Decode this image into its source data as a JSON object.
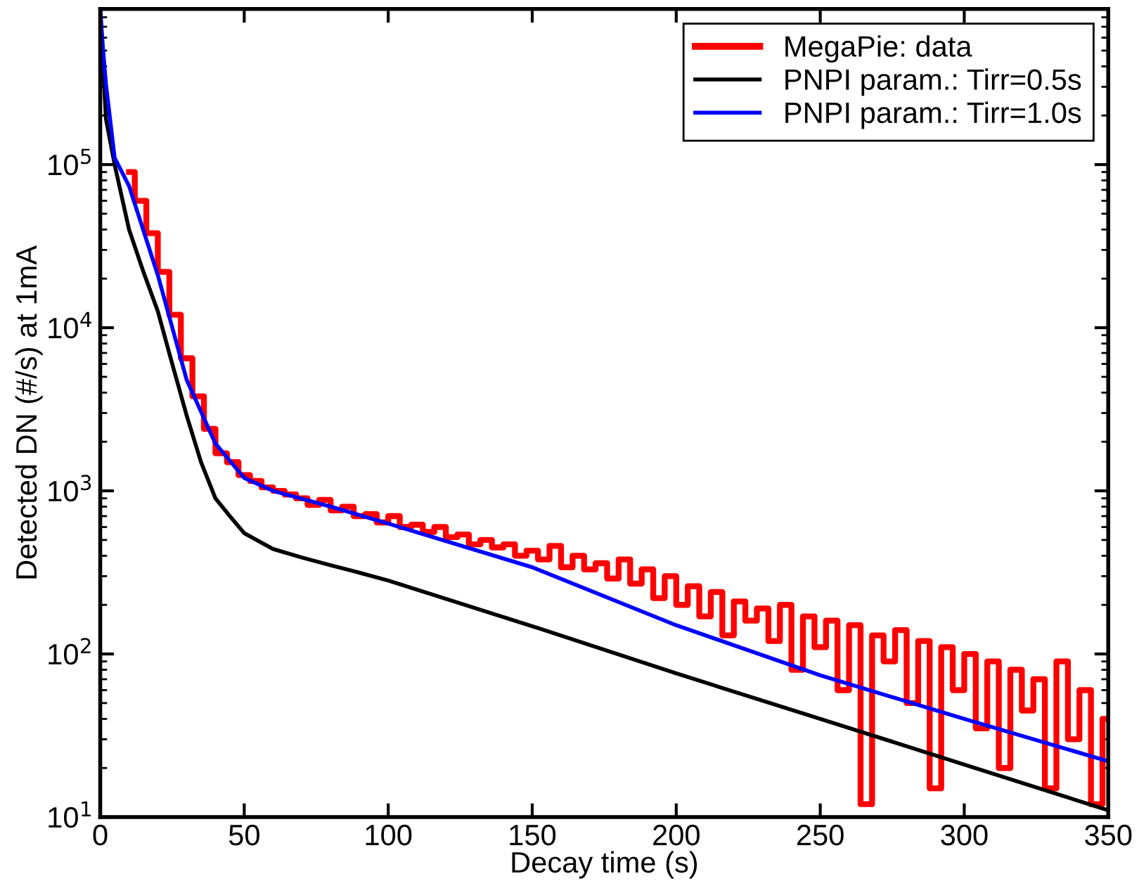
{
  "chart_data": {
    "type": "line",
    "xlabel": "Decay time (s)",
    "ylabel": "Detected DN (#/s) at 1mA",
    "log": "y",
    "grid": false,
    "legend": "top right",
    "marker": "none",
    "xlim": [
      0,
      350
    ],
    "xticks": [
      0,
      50,
      100,
      150,
      200,
      250,
      300,
      350
    ],
    "ylim": [
      10,
      900000
    ],
    "yticks": [
      {
        "value": 10,
        "label": "10$^{1}$"
      },
      {
        "value": 100,
        "label": "10$^{2}$"
      },
      {
        "value": 1000,
        "label": "10$^{3}$"
      },
      {
        "value": 10000,
        "label": "10$^{4}$"
      },
      {
        "value": 100000,
        "label": "10$^{5}$"
      }
    ],
    "series": [
      {
        "name": "MegaPie: data",
        "type": "step",
        "color": "#ff0000",
        "x": [
          10,
          14,
          18,
          22,
          26,
          30,
          34,
          38,
          42,
          46,
          50,
          54,
          58,
          62,
          66,
          70,
          74,
          78,
          82,
          86,
          90,
          94,
          98,
          102,
          106,
          110,
          114,
          118,
          122,
          126,
          130,
          134,
          138,
          142,
          146,
          150,
          154,
          158,
          162,
          166,
          170,
          174,
          178,
          182,
          186,
          190,
          194,
          198,
          202,
          206,
          210,
          214,
          218,
          222,
          226,
          230,
          234,
          238,
          242,
          246,
          250,
          254,
          258,
          262,
          266,
          270,
          274,
          278,
          282,
          286,
          290,
          294,
          298,
          302,
          306,
          310,
          314,
          318,
          322,
          326,
          330,
          334,
          338,
          342,
          346,
          350
        ],
        "values": [
          90000,
          60000,
          38000,
          22000,
          12000,
          6500,
          3800,
          2400,
          1700,
          1500,
          1250,
          1150,
          1050,
          1000,
          950,
          900,
          820,
          880,
          760,
          800,
          700,
          720,
          640,
          700,
          600,
          620,
          560,
          600,
          520,
          540,
          470,
          500,
          450,
          470,
          400,
          430,
          380,
          460,
          340,
          400,
          330,
          360,
          290,
          380,
          270,
          330,
          220,
          300,
          200,
          260,
          170,
          240,
          130,
          210,
          160,
          190,
          120,
          200,
          80,
          170,
          110,
          160,
          60,
          150,
          12,
          130,
          90,
          140,
          50,
          120,
          15,
          110,
          60,
          100,
          35,
          90,
          20,
          80,
          45,
          70,
          15,
          90,
          30,
          60,
          12,
          40
        ]
      },
      {
        "name": "PNPI param.: Tirr=0.5s",
        "color": "#000000",
        "x": [
          0,
          1,
          2,
          5,
          10,
          15,
          20,
          25,
          30,
          35,
          40,
          45,
          50,
          60,
          70,
          80,
          90,
          100,
          150,
          200,
          250,
          300,
          350
        ],
        "values": [
          900000,
          400000,
          190000,
          100000,
          40000,
          22000,
          12600,
          6000,
          2900,
          1500,
          900,
          700,
          550,
          440,
          390,
          350,
          315,
          282,
          148,
          76,
          40,
          21,
          11
        ]
      },
      {
        "name": "PNPI param.: Tirr=1.0s",
        "color": "#0000ff",
        "x": [
          0,
          1,
          2,
          5,
          10,
          20,
          30,
          40,
          50,
          60,
          80,
          100,
          150,
          200,
          250,
          300,
          350
        ],
        "values": [
          900000,
          500000,
          310000,
          110000,
          74000,
          21000,
          4800,
          1950,
          1200,
          1000,
          800,
          630,
          340,
          150,
          74,
          40,
          22
        ]
      }
    ]
  }
}
